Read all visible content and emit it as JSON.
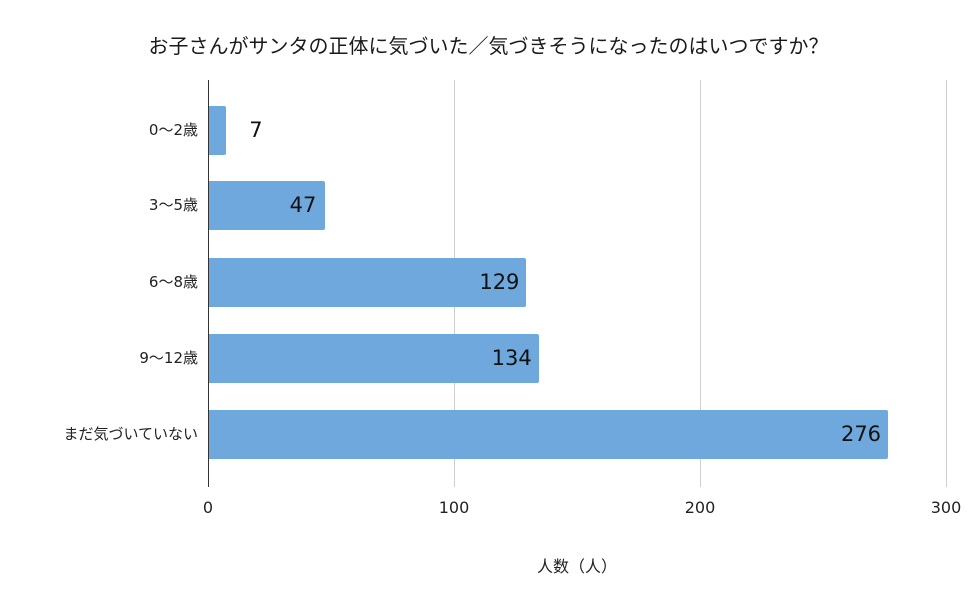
{
  "chart_data": {
    "type": "bar",
    "orientation": "horizontal",
    "title": "お子さんがサンタの正体に気づいた／気づきそうになったのはいつですか？",
    "xlabel": "人数（人）",
    "ylabel": "",
    "categories": [
      "0〜2歳",
      "3〜5歳",
      "6〜8歳",
      "9〜12歳",
      "まだ気づいていない"
    ],
    "values": [
      7,
      47,
      129,
      134,
      276
    ],
    "xlim": [
      0,
      300
    ],
    "xticks": [
      "0",
      "100",
      "200",
      "300"
    ],
    "grid": true,
    "legend": null,
    "bar_color": "#6fa8dc"
  }
}
